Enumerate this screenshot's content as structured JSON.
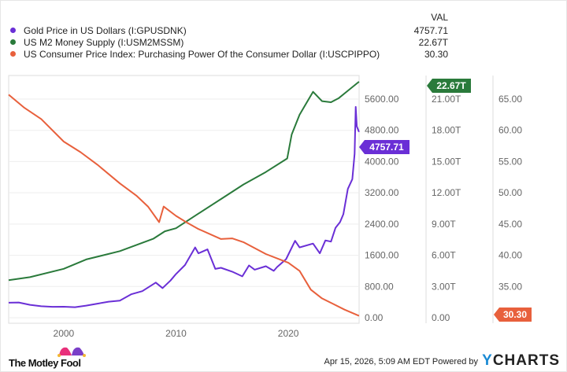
{
  "legend": {
    "header": "VAL"
  },
  "footer": {
    "date": "Apr 15, 2026, 5:09 AM EDT",
    "powered": "Powered by",
    "brand_y": "Y",
    "brand_rest": "CHARTS",
    "logo_text": "The Motley Fool"
  },
  "chart_data": {
    "type": "line",
    "grid": true,
    "x_ticks": [
      2000,
      2010,
      2020
    ],
    "x_range": [
      1995.1,
      2026.3
    ],
    "series": [
      {
        "name": "Gold Price in US Dollars (I:GPUSDNK)",
        "last": "4757.71",
        "color": "#6a2fd6",
        "axis": 0,
        "points": [
          [
            1995.1,
            385
          ],
          [
            1996,
            390
          ],
          [
            1997,
            330
          ],
          [
            1998,
            295
          ],
          [
            1999,
            280
          ],
          [
            2000,
            282
          ],
          [
            2001,
            270
          ],
          [
            2002,
            310
          ],
          [
            2003,
            360
          ],
          [
            2004,
            410
          ],
          [
            2005,
            440
          ],
          [
            2006,
            600
          ],
          [
            2007,
            680
          ],
          [
            2008.2,
            900
          ],
          [
            2008.8,
            760
          ],
          [
            2009.5,
            950
          ],
          [
            2010,
            1120
          ],
          [
            2010.8,
            1350
          ],
          [
            2011.7,
            1800
          ],
          [
            2012,
            1650
          ],
          [
            2012.8,
            1750
          ],
          [
            2013.5,
            1250
          ],
          [
            2014,
            1280
          ],
          [
            2015,
            1180
          ],
          [
            2015.9,
            1060
          ],
          [
            2016.5,
            1340
          ],
          [
            2017,
            1230
          ],
          [
            2018,
            1320
          ],
          [
            2018.7,
            1200
          ],
          [
            2019,
            1300
          ],
          [
            2019.8,
            1500
          ],
          [
            2020.6,
            1970
          ],
          [
            2021,
            1800
          ],
          [
            2022.2,
            1900
          ],
          [
            2022.8,
            1650
          ],
          [
            2023.3,
            1980
          ],
          [
            2023.8,
            1950
          ],
          [
            2024.2,
            2300
          ],
          [
            2024.6,
            2450
          ],
          [
            2024.9,
            2650
          ],
          [
            2025.3,
            3300
          ],
          [
            2025.7,
            3550
          ],
          [
            2025.9,
            4200
          ],
          [
            2026.0,
            5400
          ],
          [
            2026.1,
            4900
          ],
          [
            2026.29,
            4757.71
          ]
        ]
      },
      {
        "name": "US M2 Money Supply (I:USM2MSSM)",
        "last": "22.67T",
        "color": "#2a7a3b",
        "axis": 1,
        "points": [
          [
            1995.1,
            3.6
          ],
          [
            1997,
            3.9
          ],
          [
            2000,
            4.7
          ],
          [
            2002,
            5.6
          ],
          [
            2005,
            6.4
          ],
          [
            2008,
            7.6
          ],
          [
            2009,
            8.3
          ],
          [
            2010,
            8.6
          ],
          [
            2012,
            10.0
          ],
          [
            2014,
            11.4
          ],
          [
            2016,
            12.8
          ],
          [
            2018,
            14.0
          ],
          [
            2019.9,
            15.3
          ],
          [
            2020.3,
            17.6
          ],
          [
            2021,
            19.5
          ],
          [
            2022.2,
            21.7
          ],
          [
            2023,
            20.8
          ],
          [
            2023.8,
            20.7
          ],
          [
            2024.5,
            21.1
          ],
          [
            2025.3,
            21.8
          ],
          [
            2026.29,
            22.67
          ]
        ]
      },
      {
        "name": "US Consumer Price Index: Purchasing Power Of the Consumer Dollar (I:USCPIPPO)",
        "last": "30.30",
        "color": "#e8603c",
        "axis": 2,
        "points": [
          [
            1995.1,
            65.7
          ],
          [
            1996.5,
            63.6
          ],
          [
            1998,
            61.8
          ],
          [
            2000,
            58.2
          ],
          [
            2001.5,
            56.5
          ],
          [
            2003,
            54.5
          ],
          [
            2005,
            51.5
          ],
          [
            2006.5,
            49.5
          ],
          [
            2007.5,
            47.8
          ],
          [
            2008.5,
            45.3
          ],
          [
            2008.9,
            47.8
          ],
          [
            2010,
            46.3
          ],
          [
            2011,
            45.2
          ],
          [
            2012,
            44.2
          ],
          [
            2014,
            42.6
          ],
          [
            2015,
            42.7
          ],
          [
            2016,
            42.1
          ],
          [
            2018,
            40.2
          ],
          [
            2020,
            38.8
          ],
          [
            2021,
            37.5
          ],
          [
            2022,
            34.5
          ],
          [
            2023,
            33.1
          ],
          [
            2024,
            32.2
          ],
          [
            2025,
            31.3
          ],
          [
            2026.29,
            30.3
          ]
        ]
      }
    ],
    "axes": [
      {
        "ticks": [
          "0.00",
          "800.00",
          "1600.00",
          "2400.00",
          "3200.00",
          "4000.00",
          "4800.00",
          "5600.00"
        ],
        "range": [
          0,
          5600
        ]
      },
      {
        "ticks": [
          "0.00",
          "3.00T",
          "6.00T",
          "9.00T",
          "12.00T",
          "15.00T",
          "18.00T",
          "21.00T"
        ],
        "range": [
          0,
          21
        ]
      },
      {
        "ticks": [
          "35.00",
          "40.00",
          "45.00",
          "50.00",
          "55.00",
          "60.00",
          "65.00"
        ],
        "range": [
          30,
          65
        ]
      }
    ]
  }
}
